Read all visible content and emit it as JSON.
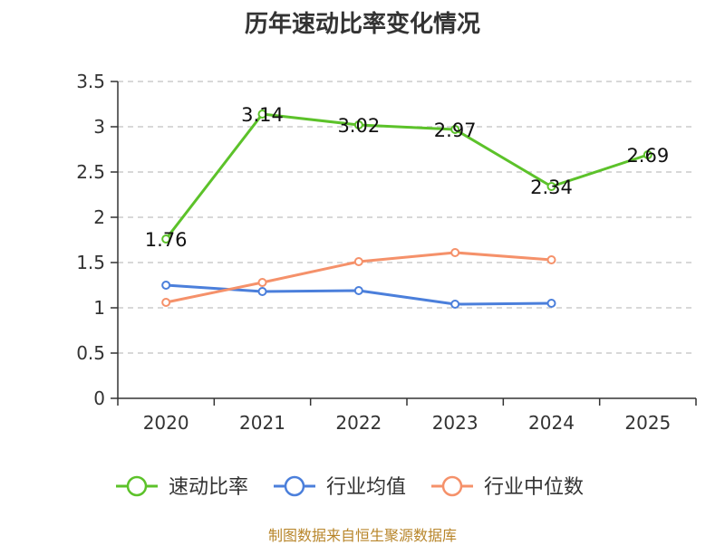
{
  "title": "历年速动比率变化情况",
  "source": "制图数据来自恒生聚源数据库",
  "chart_data": {
    "type": "line",
    "title": "历年速动比率变化情况",
    "categories": [
      "2020",
      "2021",
      "2022",
      "2023",
      "2024",
      "2025"
    ],
    "ylim": [
      0,
      3.5
    ],
    "yticks": [
      "0",
      "0.5",
      "1",
      "1.5",
      "2",
      "2.5",
      "3",
      "3.5"
    ],
    "grid": true,
    "legend_position": "bottom",
    "series": [
      {
        "name": "速动比率",
        "color": "#5cc22a",
        "values": [
          1.76,
          3.14,
          3.02,
          2.97,
          2.34,
          2.69
        ],
        "labels": [
          "1.76",
          "3.14",
          "3.02",
          "2.97",
          "2.34",
          "2.69"
        ],
        "show_labels": true
      },
      {
        "name": "行业均值",
        "color": "#4b7fdb",
        "values": [
          1.25,
          1.18,
          1.19,
          1.04,
          1.05,
          null
        ],
        "show_labels": false
      },
      {
        "name": "行业中位数",
        "color": "#f5916a",
        "values": [
          1.06,
          1.28,
          1.51,
          1.61,
          1.53,
          null
        ],
        "show_labels": false
      }
    ]
  }
}
